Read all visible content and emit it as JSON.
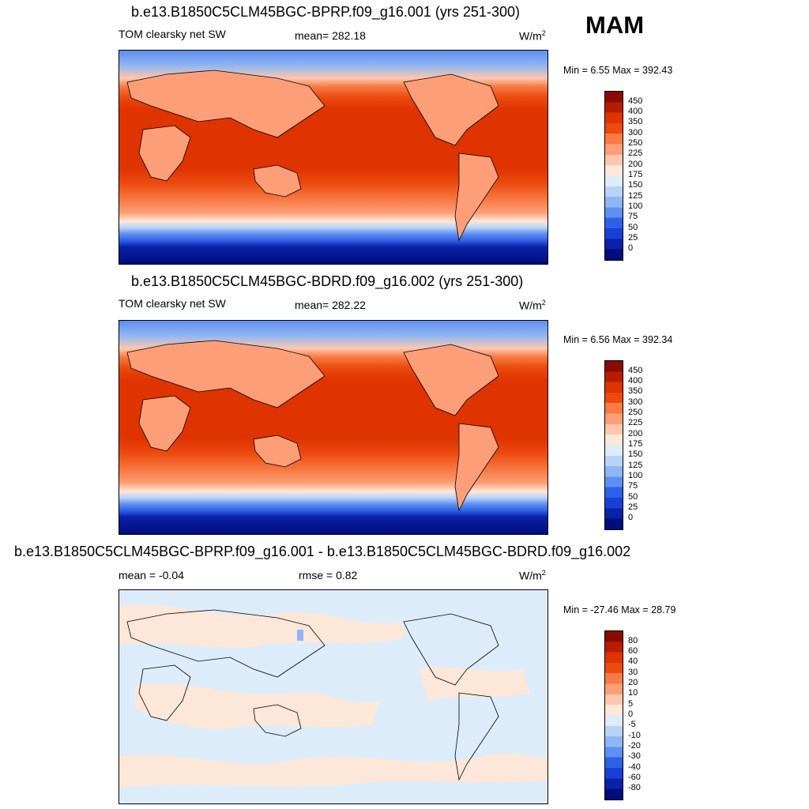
{
  "season": "MAM",
  "units_base": "W/m",
  "units_exp": "2",
  "panels": [
    {
      "title": "b.e13.B1850C5CLM45BGC-BPRP.f09_g16.001 (yrs 251-300)",
      "left_label": "TOM clearsky net SW",
      "center_label": "mean= 282.18",
      "minmax": "Min =   6.55 Max = 392.43"
    },
    {
      "title": "b.e13.B1850C5CLM45BGC-BDRD.f09_g16.002 (yrs 251-300)",
      "left_label": "TOM clearsky net SW",
      "center_label": "mean= 282.22",
      "minmax": "Min =   6.56 Max = 392.34"
    },
    {
      "title": "b.e13.B1850C5CLM45BGC-BPRP.f09_g16.001 - b.e13.B1850C5CLM45BGC-BDRD.f09_g16.002",
      "left_label": "mean =  -0.04",
      "center_label": "rmse =   0.82",
      "minmax": "Min = -27.46 Max =  28.79"
    }
  ],
  "chart_data": [
    {
      "type": "heatmap",
      "title": "b.e13.B1850C5CLM45BGC-BPRP.f09_g16.001 (yrs 251-300)",
      "variable": "TOM clearsky net SW",
      "mean": 282.18,
      "min": 6.55,
      "max": 392.43,
      "colorbar_levels": [
        "450",
        "400",
        "350",
        "300",
        "250",
        "225",
        "200",
        "175",
        "150",
        "125",
        "100",
        "75",
        "50",
        "25",
        "0"
      ],
      "colors": [
        "#8b0a00",
        "#b81c00",
        "#df3300",
        "#ec4a0f",
        "#f87a44",
        "#fc9f78",
        "#fdc7ad",
        "#fde7d8",
        "#ddecfa",
        "#b8d3f7",
        "#8fb6f2",
        "#5f8ff0",
        "#2f61e8",
        "#1a3fd6",
        "#0a22a8",
        "#000d7a"
      ],
      "zonal_profile": [
        {
          "lat": 90,
          "value": 100
        },
        {
          "lat": 75,
          "value": 150
        },
        {
          "lat": 60,
          "value": 225
        },
        {
          "lat": 45,
          "value": 300
        },
        {
          "lat": 30,
          "value": 350
        },
        {
          "lat": 15,
          "value": 375
        },
        {
          "lat": 0,
          "value": 375
        },
        {
          "lat": -15,
          "value": 375
        },
        {
          "lat": -30,
          "value": 325
        },
        {
          "lat": -45,
          "value": 250
        },
        {
          "lat": -55,
          "value": 175
        },
        {
          "lat": -65,
          "value": 75
        },
        {
          "lat": -75,
          "value": 25
        },
        {
          "lat": -90,
          "value": 10
        }
      ]
    },
    {
      "type": "heatmap",
      "title": "b.e13.B1850C5CLM45BGC-BDRD.f09_g16.002 (yrs 251-300)",
      "variable": "TOM clearsky net SW",
      "mean": 282.22,
      "min": 6.56,
      "max": 392.34,
      "colorbar_levels": [
        "450",
        "400",
        "350",
        "300",
        "250",
        "225",
        "200",
        "175",
        "150",
        "125",
        "100",
        "75",
        "50",
        "25",
        "0"
      ],
      "colors": [
        "#8b0a00",
        "#b81c00",
        "#df3300",
        "#ec4a0f",
        "#f87a44",
        "#fc9f78",
        "#fdc7ad",
        "#fde7d8",
        "#ddecfa",
        "#b8d3f7",
        "#8fb6f2",
        "#5f8ff0",
        "#2f61e8",
        "#1a3fd6",
        "#0a22a8",
        "#000d7a"
      ],
      "zonal_profile": [
        {
          "lat": 90,
          "value": 100
        },
        {
          "lat": 75,
          "value": 150
        },
        {
          "lat": 60,
          "value": 225
        },
        {
          "lat": 45,
          "value": 300
        },
        {
          "lat": 30,
          "value": 350
        },
        {
          "lat": 15,
          "value": 375
        },
        {
          "lat": 0,
          "value": 375
        },
        {
          "lat": -15,
          "value": 375
        },
        {
          "lat": -30,
          "value": 325
        },
        {
          "lat": -45,
          "value": 250
        },
        {
          "lat": -55,
          "value": 175
        },
        {
          "lat": -65,
          "value": 75
        },
        {
          "lat": -75,
          "value": 25
        },
        {
          "lat": -90,
          "value": 10
        }
      ]
    },
    {
      "type": "heatmap",
      "title": "b.e13.B1850C5CLM45BGC-BPRP.f09_g16.001 - b.e13.B1850C5CLM45BGC-BDRD.f09_g16.002",
      "mean": -0.04,
      "rmse": 0.82,
      "min": -27.46,
      "max": 28.79,
      "colorbar_levels": [
        "80",
        "60",
        "40",
        "30",
        "20",
        "10",
        "5",
        "0",
        "-5",
        "-10",
        "-20",
        "-30",
        "-40",
        "-60",
        "-80"
      ],
      "colors": [
        "#8b0a00",
        "#b81c00",
        "#df3300",
        "#ec4a0f",
        "#f87a44",
        "#fc9f78",
        "#fdc7ad",
        "#fde7d8",
        "#ddecfa",
        "#b8d3f7",
        "#8fb6f2",
        "#5f8ff0",
        "#2f61e8",
        "#1a3fd6",
        "#0a22a8",
        "#000d7a"
      ]
    }
  ]
}
